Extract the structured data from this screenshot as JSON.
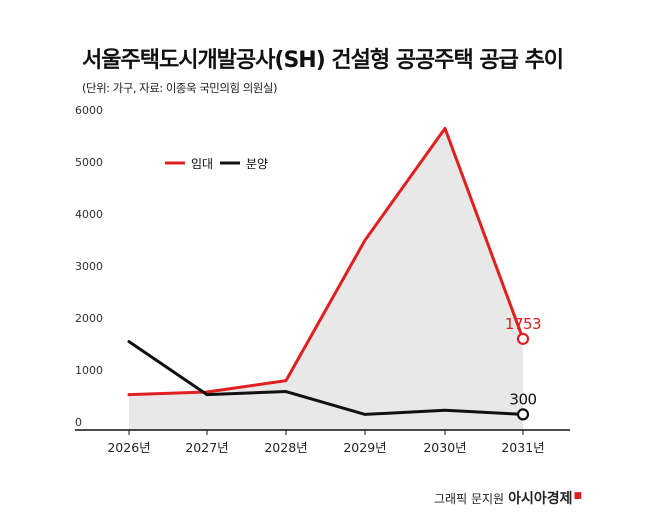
{
  "title": "서울주택도시개발공사(SH) 건설형 공공주택 공급 추이",
  "subtitle": "(단위: 가구, 자료: 이종욱 국민의힘 의원실)",
  "credit": {
    "prefix": "그래픽 문지원",
    "brand": "아시아경제"
  },
  "colors": {
    "rental": "#e02020",
    "sale": "#111111",
    "area_fill": "#e8e8e8"
  },
  "chart_data": {
    "type": "line",
    "categories": [
      "2026년",
      "2027년",
      "2028년",
      "2029년",
      "2030년",
      "2031년"
    ],
    "y_ticks": [
      "6000",
      "5000",
      "4000",
      "3000",
      "2000",
      "1000",
      "0"
    ],
    "ylim": [
      0,
      6000
    ],
    "grid": false,
    "legend_position": "top-left",
    "series": [
      {
        "name": "임대",
        "color": "#e02020",
        "values": [
          680,
          730,
          950,
          3650,
          5800,
          1753
        ]
      },
      {
        "name": "분양",
        "color": "#111111",
        "values": [
          1700,
          680,
          740,
          300,
          380,
          300
        ]
      }
    ],
    "annotations": [
      {
        "series": "임대",
        "index": 5,
        "text": "1753"
      },
      {
        "series": "분양",
        "index": 5,
        "text": "300"
      }
    ]
  }
}
